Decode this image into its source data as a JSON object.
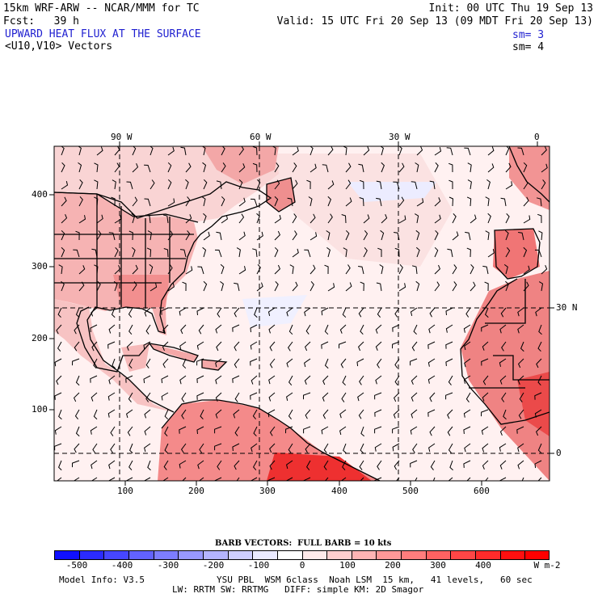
{
  "header": {
    "model_title": "15km WRF-ARW -- NCAR/MMM for TC",
    "init": "Init: 00 UTC Thu 19 Sep 13",
    "forecast": "Fcst:   39 h",
    "valid": "Valid: 15 UTC Fri 20 Sep 13 (09 MDT Fri 20 Sep 13)",
    "field_title": "UPWARD HEAT FLUX AT THE SURFACE",
    "vector_title": "<U10,V10> Vectors",
    "sm_field": "sm= 3",
    "sm_vector": "sm= 4"
  },
  "map": {
    "top_lon_labels": [
      "90 W",
      "60 W",
      "30 W",
      "0"
    ],
    "left_y_labels": [
      "400",
      "300",
      "200",
      "100"
    ],
    "bottom_x_labels": [
      "100",
      "200",
      "300",
      "400",
      "500",
      "600"
    ],
    "right_lat_labels": [
      "30 N",
      "0"
    ]
  },
  "colorbar": {
    "barb_caption": "BARB VECTORS:  FULL BARB = 10 kts",
    "labels": [
      "-500",
      "-400",
      "-300",
      "-200",
      "-100",
      "0",
      "100",
      "200",
      "300",
      "400"
    ],
    "units": "W m-2",
    "colors": [
      "#1010ff",
      "#2b2bff",
      "#4646ff",
      "#6262ff",
      "#7d7dff",
      "#9898ff",
      "#b4b4ff",
      "#cfcfff",
      "#eaeaff",
      "#ffffff",
      "#ffeaea",
      "#ffcfcf",
      "#ffb4b4",
      "#ff9898",
      "#ff7d7d",
      "#ff6262",
      "#ff4646",
      "#ff2b2b",
      "#ff1010",
      "#ff0000"
    ]
  },
  "footer": {
    "model_info": "Model Info: V3.5",
    "physics_line1": "YSU PBL  WSM 6class  Noah LSM  15 km,   41 levels,   60 sec",
    "physics_line2": "LW: RRTM SW: RRTMG   DIFF: simple KM: 2D Smagor"
  }
}
